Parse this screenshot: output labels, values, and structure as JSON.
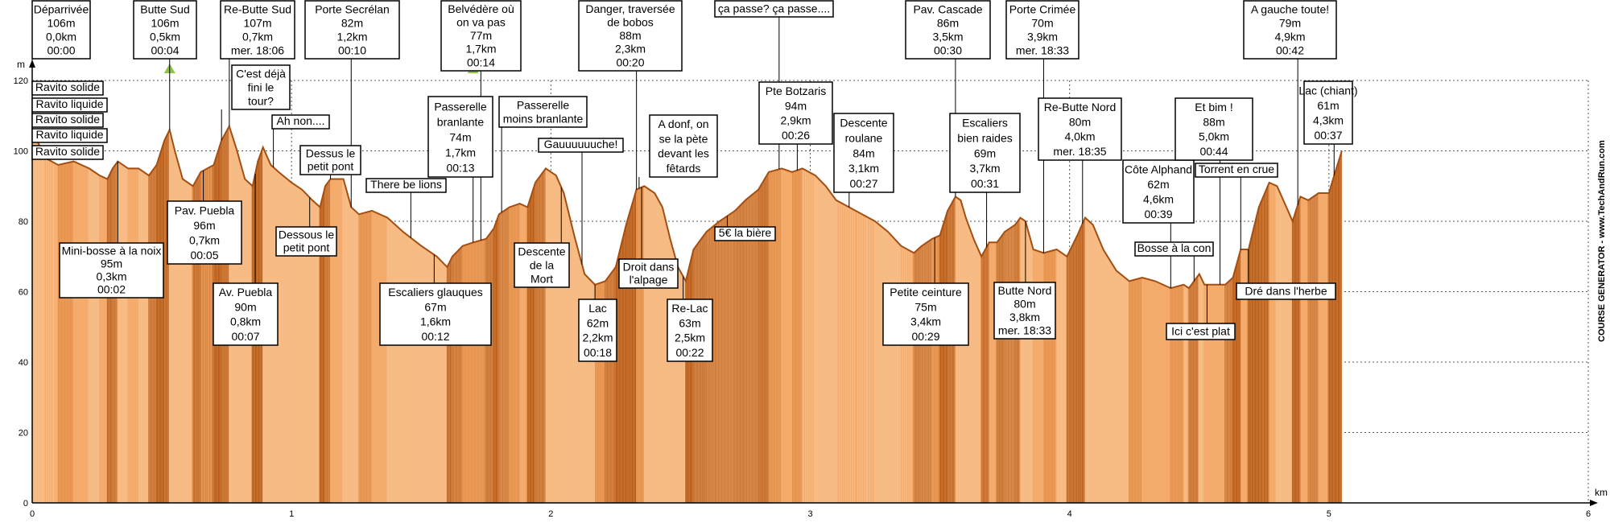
{
  "chart_data": {
    "type": "area",
    "xlabel": "km",
    "ylabel": "m",
    "xlim": [
      0,
      6
    ],
    "ylim": [
      0,
      120
    ],
    "xticks": [
      0,
      1,
      2,
      3,
      4,
      5,
      6
    ],
    "yticks": [
      0,
      20,
      40,
      60,
      80,
      100,
      120
    ],
    "grid": true,
    "colors": {
      "fill_light": "#f6b277",
      "fill_dark": "#b65a16",
      "stroke": "#a34e12",
      "summit_marker": "#8dc63f"
    },
    "credit": "COURSE GENERATOR - www.TechAndRun.com",
    "profile": [
      [
        0,
        106
      ],
      [
        0.05,
        98
      ],
      [
        0.1,
        96
      ],
      [
        0.16,
        97
      ],
      [
        0.22,
        95
      ],
      [
        0.26,
        93
      ],
      [
        0.29,
        92
      ],
      [
        0.31,
        95
      ],
      [
        0.33,
        97
      ],
      [
        0.37,
        95
      ],
      [
        0.41,
        95
      ],
      [
        0.45,
        93
      ],
      [
        0.48,
        96
      ],
      [
        0.51,
        103
      ],
      [
        0.53,
        106
      ],
      [
        0.55,
        100
      ],
      [
        0.58,
        92
      ],
      [
        0.62,
        90
      ],
      [
        0.65,
        94
      ],
      [
        0.7,
        96
      ],
      [
        0.73,
        103
      ],
      [
        0.76,
        107
      ],
      [
        0.79,
        100
      ],
      [
        0.82,
        92
      ],
      [
        0.85,
        90
      ],
      [
        0.87,
        97
      ],
      [
        0.89,
        101
      ],
      [
        0.92,
        96
      ],
      [
        0.95,
        94
      ],
      [
        1.0,
        91
      ],
      [
        1.04,
        89
      ],
      [
        1.08,
        86
      ],
      [
        1.11,
        84
      ],
      [
        1.13,
        90
      ],
      [
        1.15,
        92
      ],
      [
        1.2,
        92
      ],
      [
        1.23,
        84
      ],
      [
        1.26,
        82
      ],
      [
        1.31,
        83
      ],
      [
        1.37,
        81
      ],
      [
        1.43,
        77
      ],
      [
        1.5,
        73
      ],
      [
        1.56,
        70
      ],
      [
        1.6,
        67
      ],
      [
        1.62,
        70
      ],
      [
        1.66,
        73
      ],
      [
        1.7,
        74
      ],
      [
        1.75,
        75
      ],
      [
        1.78,
        78
      ],
      [
        1.8,
        82
      ],
      [
        1.84,
        84
      ],
      [
        1.88,
        85
      ],
      [
        1.91,
        84
      ],
      [
        1.94,
        91
      ],
      [
        1.98,
        95
      ],
      [
        2.02,
        93
      ],
      [
        2.05,
        88
      ],
      [
        2.09,
        76
      ],
      [
        2.13,
        65
      ],
      [
        2.17,
        62
      ],
      [
        2.21,
        63
      ],
      [
        2.25,
        67
      ],
      [
        2.29,
        79
      ],
      [
        2.33,
        89
      ],
      [
        2.36,
        90
      ],
      [
        2.4,
        88
      ],
      [
        2.43,
        84
      ],
      [
        2.46,
        75
      ],
      [
        2.49,
        67
      ],
      [
        2.52,
        63
      ],
      [
        2.55,
        72
      ],
      [
        2.6,
        77
      ],
      [
        2.65,
        80
      ],
      [
        2.71,
        83
      ],
      [
        2.75,
        86
      ],
      [
        2.8,
        89
      ],
      [
        2.84,
        94
      ],
      [
        2.89,
        95
      ],
      [
        2.93,
        94
      ],
      [
        2.97,
        95
      ],
      [
        3.02,
        93
      ],
      [
        3.06,
        90
      ],
      [
        3.1,
        86
      ],
      [
        3.15,
        84
      ],
      [
        3.2,
        82
      ],
      [
        3.25,
        80
      ],
      [
        3.3,
        77
      ],
      [
        3.35,
        73
      ],
      [
        3.4,
        71
      ],
      [
        3.43,
        73
      ],
      [
        3.47,
        75
      ],
      [
        3.5,
        76
      ],
      [
        3.53,
        83
      ],
      [
        3.56,
        87
      ],
      [
        3.58,
        86
      ],
      [
        3.6,
        81
      ],
      [
        3.63,
        75
      ],
      [
        3.66,
        70
      ],
      [
        3.69,
        74
      ],
      [
        3.72,
        74
      ],
      [
        3.75,
        77
      ],
      [
        3.79,
        79
      ],
      [
        3.81,
        81
      ],
      [
        3.83,
        80
      ],
      [
        3.86,
        72
      ],
      [
        3.9,
        71
      ],
      [
        3.95,
        72
      ],
      [
        3.99,
        70
      ],
      [
        4.03,
        76
      ],
      [
        4.06,
        81
      ],
      [
        4.09,
        79
      ],
      [
        4.13,
        72
      ],
      [
        4.18,
        66
      ],
      [
        4.23,
        63
      ],
      [
        4.28,
        64
      ],
      [
        4.33,
        63
      ],
      [
        4.39,
        61
      ],
      [
        4.44,
        62
      ],
      [
        4.46,
        61
      ],
      [
        4.48,
        63
      ],
      [
        4.5,
        65
      ],
      [
        4.52,
        62
      ],
      [
        4.56,
        62
      ],
      [
        4.6,
        62
      ],
      [
        4.63,
        64
      ],
      [
        4.66,
        72
      ],
      [
        4.69,
        72
      ],
      [
        4.73,
        84
      ],
      [
        4.77,
        91
      ],
      [
        4.8,
        90
      ],
      [
        4.83,
        85
      ],
      [
        4.86,
        80
      ],
      [
        4.89,
        87
      ],
      [
        4.92,
        86
      ],
      [
        4.96,
        88
      ],
      [
        5.0,
        88
      ],
      [
        5.02,
        93
      ],
      [
        5.05,
        100
      ]
    ],
    "summits": [
      0.53,
      1.7
    ],
    "annotations": [
      {
        "lines": [
          "Déparrivée",
          "106m",
          "0,0km",
          "00:00"
        ]
      },
      {
        "lines": [
          "Butte Sud",
          "106m",
          "0,5km",
          "00:04"
        ]
      },
      {
        "lines": [
          "Re-Butte Sud",
          "107m",
          "0,7km",
          "mer. 18:06"
        ]
      },
      {
        "lines": [
          "Porte Secrélan",
          "82m",
          "1,2km",
          "00:10"
        ]
      },
      {
        "lines": [
          "Belvédère où",
          "on va pas",
          "77m",
          "1,7km",
          "00:14"
        ]
      },
      {
        "lines": [
          "Danger, traversée",
          "de bobos",
          "88m",
          "2,3km",
          "00:20"
        ]
      },
      {
        "lines": [
          "ça passe? ça passe...."
        ]
      },
      {
        "lines": [
          "Pav. Cascade",
          "86m",
          "3,5km",
          "00:30"
        ]
      },
      {
        "lines": [
          "Porte Crimée",
          "70m",
          "3,9km",
          "mer. 18:33"
        ]
      },
      {
        "lines": [
          "A gauche toute!",
          "79m",
          "4,9km",
          "00:42"
        ]
      },
      {
        "lines": [
          "Ravito solide"
        ]
      },
      {
        "lines": [
          "Ravito liquide"
        ]
      },
      {
        "lines": [
          "Ravito solide"
        ]
      },
      {
        "lines": [
          "Ravito liquide"
        ]
      },
      {
        "lines": [
          "Ravito solide"
        ]
      },
      {
        "lines": [
          "C'est déjà",
          "fini le",
          "tour?"
        ]
      },
      {
        "lines": [
          "Ah non...."
        ]
      },
      {
        "lines": [
          "Dessus le",
          "petit pont"
        ]
      },
      {
        "lines": [
          "There be lions"
        ]
      },
      {
        "lines": [
          "Passerelle",
          "branlante",
          "74m",
          "1,7km",
          "00:13"
        ]
      },
      {
        "lines": [
          "Passerelle",
          "moins branlante"
        ]
      },
      {
        "lines": [
          "Gauuuuuuche!"
        ]
      },
      {
        "lines": [
          "A donf, on",
          "se la pète",
          "devant les",
          "fêtards"
        ]
      },
      {
        "lines": [
          "Pte Botzaris",
          "94m",
          "2,9km",
          "00:26"
        ]
      },
      {
        "lines": [
          "Descente",
          "roulane",
          "84m",
          "3,1km",
          "00:27"
        ]
      },
      {
        "lines": [
          "Escaliers",
          "bien raides",
          "69m",
          "3,7km",
          "00:31"
        ]
      },
      {
        "lines": [
          "Re-Butte Nord",
          "80m",
          "4,0km",
          "mer. 18:35"
        ]
      },
      {
        "lines": [
          "Côte Alphand",
          "62m",
          "4,6km",
          "00:39"
        ]
      },
      {
        "lines": [
          "Et bim !",
          "88m",
          "5,0km",
          "00:44"
        ]
      },
      {
        "lines": [
          "Lac (chiant)",
          "61m",
          "4,3km",
          "00:37"
        ]
      },
      {
        "lines": [
          "Torrent en crue"
        ]
      },
      {
        "lines": [
          "Pav. Puebla",
          "96m",
          "0,7km",
          "00:05"
        ]
      },
      {
        "lines": [
          "Mini-bosse à la noix",
          "95m",
          "0,3km",
          "00:02"
        ]
      },
      {
        "lines": [
          "Dessous le",
          "petit pont"
        ]
      },
      {
        "lines": [
          "Av. Puebla",
          "90m",
          "0,8km",
          "00:07"
        ]
      },
      {
        "lines": [
          "Escaliers glauques",
          "67m",
          "1,6km",
          "00:12"
        ]
      },
      {
        "lines": [
          "Descente",
          "de la",
          "Mort"
        ]
      },
      {
        "lines": [
          "Lac",
          "62m",
          "2,2km",
          "00:18"
        ]
      },
      {
        "lines": [
          "Droit dans",
          "l'alpage"
        ]
      },
      {
        "lines": [
          "Re-Lac",
          "63m",
          "2,5km",
          "00:22"
        ]
      },
      {
        "lines": [
          "5€ la bière"
        ]
      },
      {
        "lines": [
          "Petite ceinture",
          "75m",
          "3,4km",
          "00:29"
        ]
      },
      {
        "lines": [
          "Butte Nord",
          "80m",
          "3,8km",
          "mer. 18:33"
        ]
      },
      {
        "lines": [
          "Bosse à la con"
        ]
      },
      {
        "lines": [
          "Ici c'est plat"
        ]
      },
      {
        "lines": [
          "Dré dans l'herbe"
        ]
      }
    ]
  }
}
